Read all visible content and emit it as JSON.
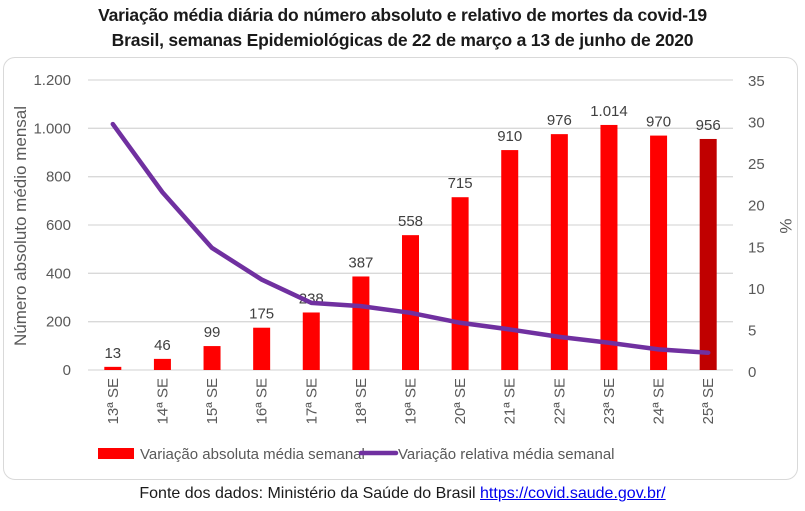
{
  "title_line1": "Variação média diária do número absoluto e relativo de mortes da covid-19",
  "title_line2": "Brasil, semanas Epidemiológicas de 22 de março a 13 de junho de 2020",
  "footer": {
    "text": "Fonte dos dados: Ministério da Saúde do Brasil",
    "link": "https://covid.saude.gov.br/"
  },
  "colors": {
    "bar": "#FF0000",
    "bar_highlight": "#C00000",
    "line": "#7030A0",
    "grid": "#D9D9D9",
    "axis_text": "#595959"
  },
  "chart_data": {
    "type": "bar+line",
    "title": "Variação média diária do número absoluto e relativo de mortes da covid-19 Brasil, semanas Epidemiológicas de 22 de março a 13 de junho de 2020",
    "categories": [
      "13ª SE",
      "14ª SE",
      "15ª SE",
      "16ª SE",
      "17ª SE",
      "18ª SE",
      "19ª SE",
      "20ª SE",
      "21ª SE",
      "22ª SE",
      "23ª SE",
      "24ª SE",
      "25ª SE"
    ],
    "series": [
      {
        "name": "Variação absoluta média semanal",
        "type": "bar",
        "axis": "left",
        "values": [
          13,
          46,
          99,
          175,
          238,
          387,
          558,
          715,
          910,
          976,
          1014,
          970,
          956
        ],
        "labels": [
          "13",
          "46",
          "99",
          "175",
          "238",
          "387",
          "558",
          "715",
          "910",
          "976",
          "1.014",
          "970",
          "956"
        ],
        "highlight_index": 12
      },
      {
        "name": "Variação relativa média semanal",
        "type": "line",
        "axis": "right",
        "values": [
          29.7,
          21.5,
          14.8,
          11.0,
          8.2,
          7.8,
          7.0,
          5.8,
          5.0,
          4.1,
          3.4,
          2.6,
          2.2
        ]
      }
    ],
    "ylabel": "Número absoluto médio mensal",
    "ylim": [
      0,
      1200
    ],
    "yticks": [
      0,
      200,
      400,
      600,
      800,
      1000,
      1200
    ],
    "ytick_labels": [
      "0",
      "200",
      "400",
      "600",
      "800",
      "1.000",
      "1.200"
    ],
    "y2label": "%",
    "y2lim": [
      0,
      35
    ],
    "y2ticks": [
      0,
      5,
      10,
      15,
      20,
      25,
      30,
      35
    ],
    "y2tick_labels": [
      "0",
      "5",
      "10",
      "15",
      "20",
      "25",
      "30",
      "35"
    ],
    "grid": true,
    "legend": "bottom"
  }
}
